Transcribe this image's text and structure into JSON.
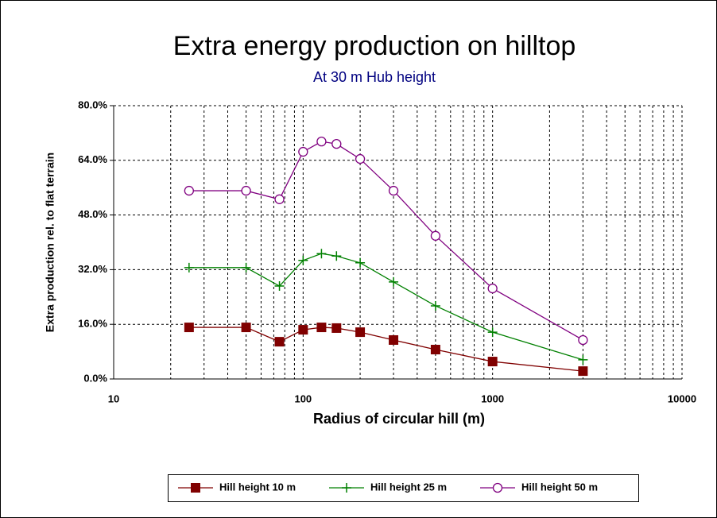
{
  "chart_data": {
    "type": "line",
    "title": "Extra energy production on hilltop",
    "subtitle": "At 30 m Hub height",
    "x_label": "Radius of circular hill (m)",
    "y_label": "Extra production rel. to flat terrain",
    "x": [
      25,
      50,
      75,
      100,
      125,
      150,
      200,
      300,
      500,
      1000,
      3000
    ],
    "series": [
      {
        "name": "Hill height 10 m",
        "color": "#800000",
        "marker": "square",
        "values": [
          15.1,
          15.1,
          10.9,
          14.4,
          15.1,
          14.9,
          13.7,
          11.4,
          8.6,
          5.1,
          2.3
        ]
      },
      {
        "name": "Hill height 25 m",
        "color": "#008000",
        "marker": "plus",
        "values": [
          32.6,
          32.6,
          27.2,
          34.7,
          36.7,
          36.0,
          34.0,
          28.4,
          21.4,
          13.7,
          5.6
        ]
      },
      {
        "name": "Hill height 50 m",
        "color": "#800080",
        "marker": "circle",
        "values": [
          55.1,
          55.1,
          52.6,
          66.5,
          69.5,
          68.8,
          64.4,
          55.1,
          41.9,
          26.5,
          11.4
        ]
      }
    ],
    "xlim": [
      10,
      10000
    ],
    "xticks": [
      10,
      100,
      1000,
      10000
    ],
    "xscale": "log",
    "ylim": [
      0,
      80
    ],
    "yticks": [
      {
        "value": 0,
        "label": "0.0%"
      },
      {
        "value": 16,
        "label": "16.0%"
      },
      {
        "value": 32,
        "label": "32.0%"
      },
      {
        "value": 48,
        "label": "48.0%"
      },
      {
        "value": 64,
        "label": "64.0%"
      },
      {
        "value": 80,
        "label": "80.0%"
      }
    ],
    "grid": true,
    "legend": "bottom"
  }
}
